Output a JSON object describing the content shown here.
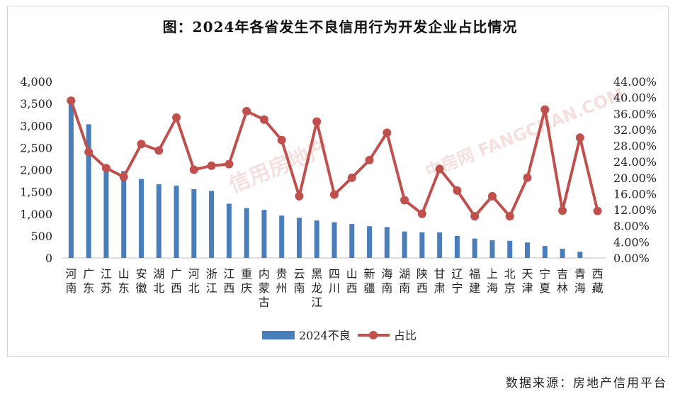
{
  "title": "图：2024年各省发生不良信用行为开发企业占比情况",
  "source": "数据来源：房地产信用平台",
  "watermarks": [
    "信用房地产",
    "中房网 FANGCHAN.COM"
  ],
  "chart_data": {
    "type": "bar+line",
    "categories": [
      "河南",
      "广东",
      "江苏",
      "山东",
      "安徽",
      "湖北",
      "广西",
      "河北",
      "浙江",
      "江西",
      "重庆",
      "内蒙古",
      "贵州",
      "云南",
      "黑龙江",
      "四川",
      "山西",
      "新疆",
      "海南",
      "湖南",
      "陕西",
      "甘肃",
      "辽宁",
      "福建",
      "上海",
      "北京",
      "天津",
      "宁夏",
      "吉林",
      "青海",
      "西藏"
    ],
    "series": [
      {
        "name": "2024不良",
        "type": "bar",
        "axis": "left",
        "values": [
          3550,
          3030,
          2030,
          1970,
          1790,
          1670,
          1640,
          1560,
          1520,
          1230,
          1130,
          1090,
          960,
          910,
          850,
          810,
          770,
          720,
          700,
          600,
          580,
          580,
          500,
          440,
          400,
          390,
          350,
          270,
          210,
          140,
          0
        ]
      },
      {
        "name": "占比",
        "type": "line",
        "axis": "right",
        "values": [
          39.2,
          26.4,
          22.4,
          20.2,
          28.4,
          26.8,
          35.0,
          22.0,
          23.0,
          23.4,
          36.6,
          34.5,
          29.4,
          15.4,
          34.0,
          15.8,
          20.0,
          24.4,
          31.2,
          14.4,
          11.0,
          22.2,
          16.8,
          10.4,
          15.4,
          10.4,
          20.0,
          37.0,
          11.8,
          30.0,
          11.7
        ]
      }
    ],
    "y_left": {
      "min": 0,
      "max": 4000,
      "step": 500,
      "ticks": [
        "0",
        "500",
        "1,000",
        "1,500",
        "2,000",
        "2,500",
        "3,000",
        "3,500",
        "4,000"
      ]
    },
    "y_right": {
      "min": 0,
      "max": 44,
      "step": 4,
      "ticks": [
        "0.00%",
        "4.00%",
        "8.00%",
        "12.00%",
        "16.00%",
        "20.00%",
        "24.00%",
        "28.00%",
        "32.00%",
        "36.00%",
        "40.00%",
        "44.00%"
      ]
    },
    "legend": {
      "position": "bottom",
      "items": [
        "2024不良",
        "占比"
      ]
    },
    "colors": {
      "bar": "#4a7ebb",
      "line": "#c0504d",
      "marker": "#c0504d"
    },
    "grid": false
  }
}
